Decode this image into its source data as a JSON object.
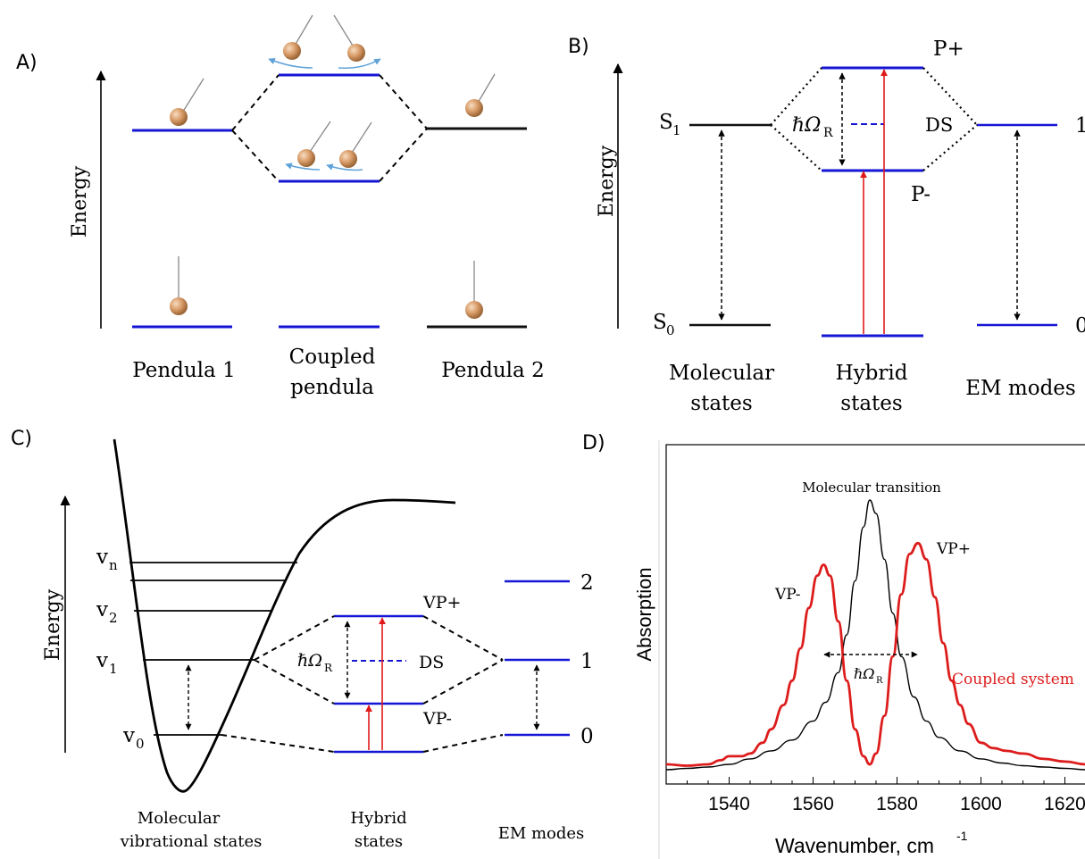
{
  "panelA": {
    "letter": "A)",
    "energy_label": "Energy",
    "label_left": "Pendula 1",
    "label_mid_1": "Coupled",
    "label_mid_2": "pendula",
    "label_right": "Pendula 2"
  },
  "panelB": {
    "letter": "B)",
    "energy_label": "Energy",
    "s1_main": "S",
    "s1_sub": "1",
    "s0_main": "S",
    "s0_sub": "0",
    "p_plus": "P+",
    "p_minus": "P-",
    "rabi_main": "ℏΩ",
    "rabi_sub": "R",
    "ds": "DS",
    "level_1": "1",
    "level_0": "0",
    "col1_a": "Molecular",
    "col1_b": "states",
    "col2_a": "Hybrid",
    "col2_b": "states",
    "col3": "EM modes"
  },
  "panelC": {
    "letter": "C)",
    "energy_label": "Energy",
    "vn_main": "v",
    "vn_sub": "n",
    "v2_main": "v",
    "v2_sub": "2",
    "v1_main": "v",
    "v1_sub": "1",
    "v0_main": "v",
    "v0_sub": "0",
    "vp_plus": "VP+",
    "vp_minus": "VP-",
    "rabi_main": "ℏΩ",
    "rabi_sub": "R",
    "ds": "DS",
    "level_2": "2",
    "level_1": "1",
    "level_0": "0",
    "col1_a": "Molecular",
    "col1_b": "vibrational states",
    "col2_a": "Hybrid",
    "col2_b": "states",
    "col3": "EM modes"
  },
  "panelD": {
    "letter": "D)",
    "molecular_transition": "Molecular transition",
    "vp_minus": "VP-",
    "vp_plus": "VP+",
    "rabi_main": "ℏΩ",
    "rabi_sub": "R",
    "coupled_system": "Coupled system",
    "ylabel": "Absorption",
    "xlabel_main": "Wavenumber, cm",
    "xlabel_sup": "-1",
    "colors": {
      "coupled": "#dd1c1c",
      "molecular": "#000000"
    }
  },
  "chart_data": {
    "type": "line",
    "xlabel": "Wavenumber, cm-1",
    "ylabel": "Absorption",
    "xlim": [
      1525,
      1625
    ],
    "x_ticks": [
      "1540",
      "1560",
      "1580",
      "1600",
      "1620"
    ],
    "series": [
      {
        "name": "Molecular transition",
        "color": "#000000",
        "x": [
          1525,
          1530,
          1535,
          1540,
          1545,
          1550,
          1555,
          1560,
          1563,
          1566,
          1568,
          1570,
          1572,
          1573.5,
          1575,
          1577,
          1579,
          1581,
          1584,
          1587,
          1590,
          1595,
          1600,
          1605,
          1610,
          1615,
          1620,
          1625
        ],
        "y": [
          0.0,
          0.005,
          0.01,
          0.02,
          0.04,
          0.07,
          0.11,
          0.18,
          0.25,
          0.36,
          0.5,
          0.7,
          0.9,
          1.0,
          0.95,
          0.78,
          0.58,
          0.42,
          0.27,
          0.18,
          0.12,
          0.07,
          0.04,
          0.025,
          0.015,
          0.01,
          0.005,
          0.0
        ]
      },
      {
        "name": "Coupled system",
        "color": "#dd1c1c",
        "x": [
          1525,
          1530,
          1535,
          1538,
          1540,
          1543,
          1545,
          1548,
          1550,
          1553,
          1555,
          1557,
          1559,
          1561,
          1562.5,
          1564,
          1566,
          1568,
          1570,
          1572,
          1573.5,
          1575,
          1577,
          1579,
          1581,
          1583,
          1585,
          1587,
          1589,
          1591,
          1593,
          1595,
          1597,
          1600,
          1603,
          1606,
          1610,
          1615,
          1620,
          1625
        ],
        "y": [
          0.02,
          0.015,
          0.02,
          0.035,
          0.05,
          0.05,
          0.06,
          0.1,
          0.15,
          0.24,
          0.33,
          0.45,
          0.6,
          0.72,
          0.76,
          0.72,
          0.55,
          0.33,
          0.15,
          0.05,
          0.02,
          0.06,
          0.2,
          0.42,
          0.65,
          0.8,
          0.84,
          0.78,
          0.64,
          0.47,
          0.33,
          0.24,
          0.17,
          0.1,
          0.08,
          0.07,
          0.06,
          0.04,
          0.03,
          0.02
        ]
      }
    ]
  }
}
